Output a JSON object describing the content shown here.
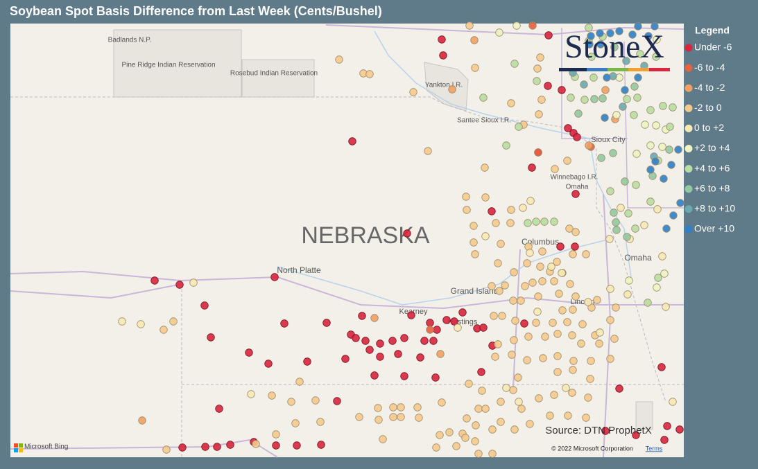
{
  "header": {
    "title": "Soybean Spot Basis Difference from Last Week (Cents/Bushel)"
  },
  "logo": "StoneX",
  "legend": {
    "title": "Legend",
    "items": [
      {
        "label": "Under -6",
        "color": "#d7263d"
      },
      {
        "label": "-6 to -4",
        "color": "#e8623e"
      },
      {
        "label": "-4 to -2",
        "color": "#f0a062"
      },
      {
        "label": "-2 to 0",
        "color": "#f5c98c"
      },
      {
        "label": "0 to +2",
        "color": "#f8e9b2"
      },
      {
        "label": "+2 to +4",
        "color": "#eef4c2"
      },
      {
        "label": "+4 to +6",
        "color": "#b9dda2"
      },
      {
        "label": "+6 to +8",
        "color": "#92c9a0"
      },
      {
        "label": "+8 to +10",
        "color": "#6aa9b0"
      },
      {
        "label": "Over +10",
        "color": "#2f80c8"
      }
    ]
  },
  "map": {
    "labels": [
      "Badlands N.P.",
      "Pine Ridge Indian Reservation",
      "Rosebud Indian Reservation",
      "Yankton I.R.",
      "Santee Sioux I.R.",
      "Sioux City",
      "Winnebago I.R.",
      "Omaha",
      "NEBRASKA",
      "North Platte",
      "Columbus",
      "Grand Island",
      "Kearney",
      "Hastings",
      "Lincoln",
      "Omaha"
    ],
    "source": "Source: DTN ProphetX",
    "provider": "Microsoft Bing",
    "copyright": "© 2022 Microsoft Corporation",
    "terms": "Terms"
  }
}
